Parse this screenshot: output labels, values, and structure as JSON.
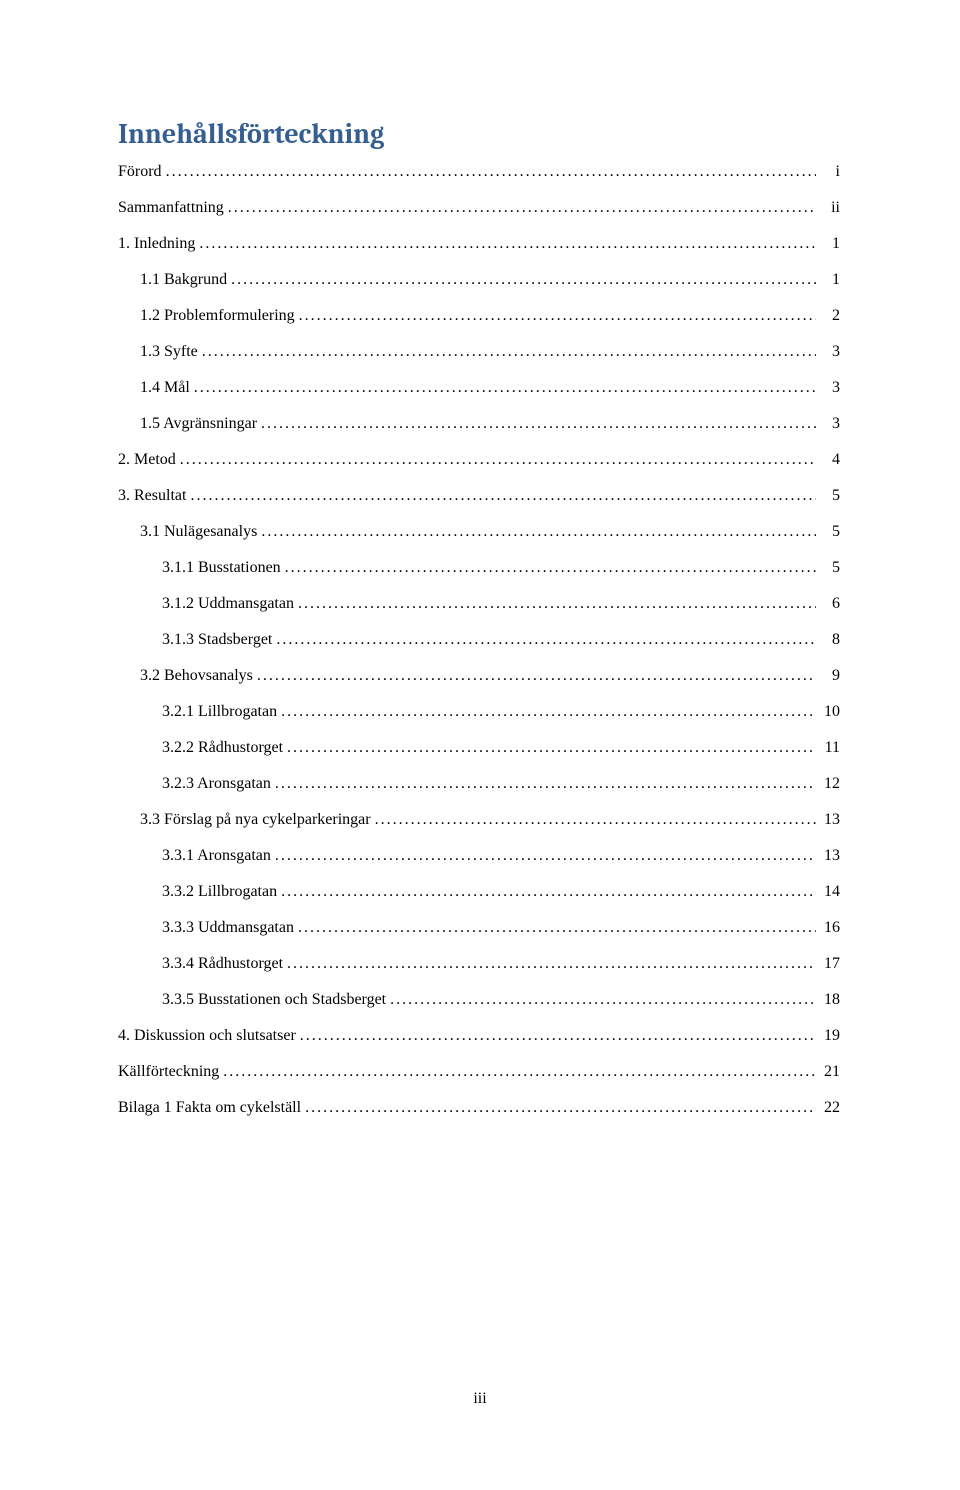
{
  "title": "Innehållsförteckning",
  "title_color": "#365f91",
  "title_fontsize": 28,
  "body_fontsize": 16,
  "background_color": "#ffffff",
  "text_color": "#000000",
  "page_number": "iii",
  "entries": [
    {
      "level": 0,
      "label": "Förord",
      "page": "i"
    },
    {
      "level": 0,
      "label": "Sammanfattning",
      "page": "ii"
    },
    {
      "level": 0,
      "label": "1. Inledning",
      "page": "1"
    },
    {
      "level": 1,
      "label": "1.1 Bakgrund",
      "page": "1"
    },
    {
      "level": 1,
      "label": "1.2 Problemformulering",
      "page": "2"
    },
    {
      "level": 1,
      "label": "1.3 Syfte",
      "page": "3"
    },
    {
      "level": 1,
      "label": "1.4 Mål",
      "page": "3"
    },
    {
      "level": 1,
      "label": "1.5 Avgränsningar",
      "page": "3"
    },
    {
      "level": 0,
      "label": "2. Metod",
      "page": "4"
    },
    {
      "level": 0,
      "label": "3. Resultat",
      "page": "5"
    },
    {
      "level": 1,
      "label": "3.1 Nulägesanalys",
      "page": "5"
    },
    {
      "level": 2,
      "label": "3.1.1 Busstationen",
      "page": "5"
    },
    {
      "level": 2,
      "label": "3.1.2 Uddmansgatan",
      "page": "6"
    },
    {
      "level": 2,
      "label": "3.1.3 Stadsberget",
      "page": "8"
    },
    {
      "level": 1,
      "label": "3.2 Behovsanalys",
      "page": "9"
    },
    {
      "level": 2,
      "label": "3.2.1 Lillbrogatan",
      "page": "10"
    },
    {
      "level": 2,
      "label": "3.2.2 Rådhustorget",
      "page": "11"
    },
    {
      "level": 2,
      "label": "3.2.3 Aronsgatan",
      "page": "12"
    },
    {
      "level": 1,
      "label": "3.3 Förslag på nya cykelparkeringar",
      "page": "13"
    },
    {
      "level": 2,
      "label": "3.3.1 Aronsgatan",
      "page": "13"
    },
    {
      "level": 2,
      "label": "3.3.2 Lillbrogatan",
      "page": "14"
    },
    {
      "level": 2,
      "label": "3.3.3 Uddmansgatan",
      "page": "16"
    },
    {
      "level": 2,
      "label": "3.3.4 Rådhustorget",
      "page": "17"
    },
    {
      "level": 2,
      "label": "3.3.5 Busstationen och Stadsberget",
      "page": "18"
    },
    {
      "level": 0,
      "label": "4. Diskussion och slutsatser",
      "page": "19"
    },
    {
      "level": 0,
      "label": "Källförteckning",
      "page": "21"
    },
    {
      "level": 0,
      "label": "Bilaga 1 Fakta om cykelställ",
      "page": "22"
    }
  ]
}
